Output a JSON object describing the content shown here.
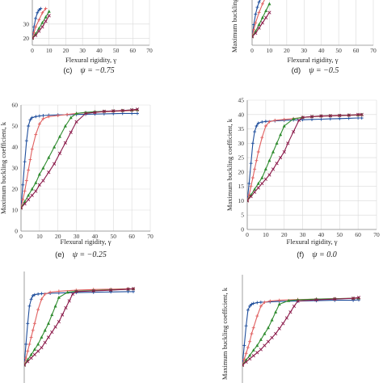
{
  "chart_data": [
    {
      "panel": "c-partial",
      "type": "line",
      "xlabel": "Flexural rigidity, γ",
      "ylabel": "",
      "caption_letter": "(c)",
      "caption_text": "ψ = −0.75",
      "xlim": [
        0,
        70
      ],
      "ylim": [
        15,
        70
      ],
      "xticks": [
        0,
        10,
        20,
        30,
        40,
        50,
        60,
        70
      ],
      "yticks": [
        20,
        30
      ],
      "grid": true,
      "series": [
        {
          "color": "#1f4e9c",
          "marker": "plus",
          "x": [
            0,
            1,
            2,
            3,
            4,
            5
          ],
          "y": [
            20,
            28,
            34,
            38,
            40,
            41
          ]
        },
        {
          "color": "#e06060",
          "marker": "plus",
          "x": [
            0,
            1,
            2,
            4,
            6,
            8
          ],
          "y": [
            20,
            24,
            28,
            33,
            38,
            41
          ]
        },
        {
          "color": "#2e8b2e",
          "marker": "triangle",
          "x": [
            0,
            2,
            4,
            6,
            8,
            10
          ],
          "y": [
            20,
            23,
            27,
            31,
            35,
            39
          ]
        },
        {
          "color": "#8b1a4a",
          "marker": "x",
          "x": [
            0,
            2,
            4,
            6,
            8,
            10
          ],
          "y": [
            20,
            22,
            25,
            28,
            32,
            36
          ]
        }
      ]
    },
    {
      "panel": "d-partial",
      "type": "line",
      "xlabel": "Flexural rigidity, γ",
      "ylabel": "Maximum buckling coefficient, k",
      "caption_letter": "(d)",
      "caption_text": "ψ = −0.5",
      "xlim": [
        0,
        70
      ],
      "ylim": [
        10,
        55
      ],
      "xticks": [
        0,
        10,
        20,
        30,
        40,
        50,
        60,
        70
      ],
      "yticks": [],
      "grid": true,
      "series": [
        {
          "color": "#1f4e9c",
          "marker": "plus",
          "x": [
            0,
            1,
            2,
            3,
            4,
            5,
            6
          ],
          "y": [
            15,
            22,
            28,
            32,
            35,
            37,
            38
          ]
        },
        {
          "color": "#e06060",
          "marker": "plus",
          "x": [
            0,
            1,
            2,
            4,
            6,
            8
          ],
          "y": [
            15,
            19,
            23,
            29,
            34,
            38
          ]
        },
        {
          "color": "#2e8b2e",
          "marker": "triangle",
          "x": [
            0,
            2,
            4,
            6,
            8,
            10
          ],
          "y": [
            15,
            18,
            22,
            26,
            30,
            34
          ]
        },
        {
          "color": "#8b1a4a",
          "marker": "x",
          "x": [
            0,
            2,
            4,
            6,
            8,
            10
          ],
          "y": [
            15,
            17,
            20,
            23,
            26,
            29
          ]
        }
      ]
    },
    {
      "panel": "e",
      "type": "line",
      "xlabel": "Flexural rigidity, γ",
      "ylabel": "Maximum buckling coefficient, k",
      "caption_letter": "(e)",
      "caption_text": "ψ = −0.25",
      "xlim": [
        0,
        70
      ],
      "ylim": [
        0,
        60
      ],
      "xticks": [
        0,
        10,
        20,
        30,
        40,
        50,
        60,
        70
      ],
      "yticks": [
        0,
        10,
        20,
        30,
        40,
        50,
        60
      ],
      "grid": true,
      "series": [
        {
          "color": "#1f4e9c",
          "marker": "plus",
          "x": [
            0,
            1,
            2,
            3,
            4,
            5,
            6,
            8,
            10,
            12,
            15,
            20,
            25,
            30,
            35,
            40,
            45,
            50,
            55,
            60,
            63
          ],
          "y": [
            11,
            22,
            33,
            43,
            50,
            53,
            54,
            54.5,
            54.8,
            55,
            55.2,
            55.3,
            55.4,
            55.5,
            55.6,
            55.7,
            55.8,
            55.9,
            56,
            56,
            56
          ]
        },
        {
          "color": "#e06060",
          "marker": "plus",
          "x": [
            0,
            1,
            2,
            3,
            4,
            5,
            6,
            8,
            10,
            12,
            15,
            20,
            25,
            30,
            35,
            40,
            45,
            50,
            55,
            60,
            63
          ],
          "y": [
            11,
            15,
            19,
            24,
            29,
            34,
            39,
            46,
            51,
            53.5,
            54.5,
            55,
            55.5,
            56,
            56.3,
            56.5,
            56.8,
            57,
            57.2,
            57.4,
            57.5
          ]
        },
        {
          "color": "#2e8b2e",
          "marker": "triangle",
          "x": [
            0,
            2,
            4,
            6,
            8,
            10,
            12,
            15,
            18,
            21,
            24,
            27,
            30,
            35,
            40,
            45,
            50,
            55,
            60,
            63
          ],
          "y": [
            11,
            14,
            17,
            20,
            23,
            27,
            30,
            35,
            40,
            45,
            50,
            54,
            56,
            56.5,
            56.8,
            57,
            57.2,
            57.4,
            57.6,
            57.8
          ]
        },
        {
          "color": "#8b1a4a",
          "marker": "x",
          "x": [
            0,
            2,
            4,
            6,
            8,
            10,
            12,
            15,
            18,
            21,
            24,
            27,
            30,
            35,
            40,
            45,
            50,
            55,
            60,
            63
          ],
          "y": [
            11,
            13,
            15,
            17,
            19,
            22,
            24,
            28,
            32,
            37,
            42,
            47,
            52,
            56,
            56.5,
            57,
            57.2,
            57.4,
            57.7,
            58
          ]
        }
      ]
    },
    {
      "panel": "f",
      "type": "line",
      "xlabel": "Flexural rigidity, γ",
      "ylabel": "Maximum buckling coefficient, k",
      "caption_letter": "(f)",
      "caption_text": "ψ = 0.0",
      "xlim": [
        0,
        70
      ],
      "ylim": [
        0,
        45
      ],
      "xticks": [
        0,
        10,
        20,
        30,
        40,
        50,
        60,
        70
      ],
      "yticks": [
        0,
        5,
        10,
        15,
        20,
        25,
        30,
        35,
        40,
        45
      ],
      "grid": true,
      "series": [
        {
          "color": "#1f4e9c",
          "marker": "plus",
          "x": [
            0,
            1,
            2,
            3,
            4,
            5,
            6,
            8,
            10,
            15,
            20,
            25,
            30,
            35,
            40,
            45,
            50,
            55,
            60,
            62
          ],
          "y": [
            10,
            16,
            23,
            30,
            34,
            36,
            37,
            37.4,
            37.6,
            37.8,
            38,
            38.1,
            38.2,
            38.3,
            38.4,
            38.5,
            38.6,
            38.7,
            38.8,
            38.8
          ]
        },
        {
          "color": "#e06060",
          "marker": "plus",
          "x": [
            0,
            1,
            2,
            3,
            4,
            5,
            6,
            8,
            10,
            12,
            15,
            20,
            25,
            30,
            35,
            40,
            45,
            50,
            55,
            60,
            62
          ],
          "y": [
            10,
            12,
            15,
            18,
            21,
            24,
            27,
            32,
            36,
            37.5,
            38,
            38.3,
            38.6,
            39,
            39.2,
            39.4,
            39.5,
            39.6,
            39.7,
            39.8,
            39.8
          ]
        },
        {
          "color": "#2e8b2e",
          "marker": "triangle",
          "x": [
            0,
            2,
            4,
            6,
            8,
            10,
            12,
            14,
            16,
            18,
            20,
            25,
            30,
            35,
            40,
            45,
            50,
            55,
            60,
            62
          ],
          "y": [
            10,
            12,
            14,
            16,
            18,
            21,
            24,
            27,
            30,
            33,
            36,
            38.5,
            39,
            39.3,
            39.5,
            39.6,
            39.7,
            39.8,
            39.9,
            40
          ]
        },
        {
          "color": "#8b1a4a",
          "marker": "x",
          "x": [
            0,
            2,
            4,
            6,
            8,
            10,
            12,
            14,
            16,
            18,
            20,
            22,
            25,
            28,
            30,
            35,
            40,
            45,
            50,
            55,
            60,
            62
          ],
          "y": [
            10,
            11.5,
            13,
            14.5,
            16,
            17.5,
            19,
            21,
            23,
            25,
            27,
            30,
            34,
            38,
            39,
            39.3,
            39.5,
            39.6,
            39.7,
            39.8,
            40,
            40
          ]
        }
      ]
    },
    {
      "panel": "g-partial",
      "type": "line",
      "xlabel": "",
      "ylabel": "",
      "caption_letter": "",
      "caption_text": "",
      "xlim": [
        0,
        70
      ],
      "ylim": [
        0,
        35
      ],
      "xticks": [],
      "yticks": [],
      "grid": true,
      "series": [
        {
          "color": "#1f4e9c",
          "marker": "plus",
          "x": [
            0,
            1,
            2,
            3,
            4,
            5,
            6,
            8,
            10,
            15,
            20,
            30,
            40,
            50,
            60,
            63
          ],
          "y": [
            8,
            14,
            20,
            25,
            27,
            28,
            28.3,
            28.5,
            28.6,
            28.7,
            28.8,
            28.9,
            29,
            29.1,
            29.2,
            29.2
          ]
        },
        {
          "color": "#e06060",
          "marker": "plus",
          "x": [
            0,
            1,
            2,
            3,
            4,
            5,
            6,
            8,
            10,
            12,
            15,
            20,
            30,
            40,
            50,
            60,
            63
          ],
          "y": [
            8,
            10,
            12,
            14,
            16,
            18,
            20,
            24,
            27,
            28.5,
            29,
            29.3,
            29.6,
            29.8,
            29.9,
            30,
            30
          ]
        },
        {
          "color": "#2e8b2e",
          "marker": "triangle",
          "x": [
            0,
            2,
            4,
            6,
            8,
            10,
            12,
            14,
            16,
            18,
            20,
            25,
            30,
            40,
            50,
            60,
            63
          ],
          "y": [
            8,
            9.5,
            11,
            12.5,
            14,
            16,
            18,
            20,
            22.5,
            25,
            27.5,
            29,
            29.3,
            29.5,
            29.7,
            29.9,
            30
          ]
        },
        {
          "color": "#8b1a4a",
          "marker": "x",
          "x": [
            0,
            2,
            4,
            6,
            8,
            10,
            12,
            14,
            16,
            18,
            20,
            22,
            24,
            26,
            28,
            30,
            40,
            50,
            60,
            63
          ],
          "y": [
            8,
            9,
            10,
            11,
            12,
            13,
            14.5,
            16,
            17.5,
            19,
            20.5,
            22.5,
            24.5,
            26.5,
            28.5,
            29.2,
            29.4,
            29.6,
            29.9,
            30
          ]
        }
      ]
    },
    {
      "panel": "h-partial",
      "type": "line",
      "xlabel": "",
      "ylabel": "Maximum buckling coefficient, k",
      "caption_letter": "",
      "caption_text": "",
      "xlim": [
        0,
        70
      ],
      "ylim": [
        0,
        30
      ],
      "xticks": [],
      "yticks": [],
      "grid": true,
      "series": [
        {
          "color": "#1f4e9c",
          "marker": "plus",
          "x": [
            0,
            1,
            2,
            3,
            4,
            5,
            6,
            8,
            10,
            15,
            20,
            30,
            40,
            50,
            60,
            63
          ],
          "y": [
            7,
            12,
            17,
            21,
            22,
            22.5,
            22.7,
            22.9,
            23,
            23.1,
            23.2,
            23.3,
            23.4,
            23.5,
            23.5,
            23.6
          ]
        },
        {
          "color": "#e06060",
          "marker": "plus",
          "x": [
            0,
            1,
            2,
            3,
            4,
            5,
            6,
            8,
            10,
            12,
            15,
            20,
            30,
            40,
            50,
            60,
            63
          ],
          "y": [
            7,
            8.5,
            10,
            11.5,
            13,
            15,
            16.5,
            19.5,
            22,
            23,
            23.3,
            23.5,
            23.7,
            23.8,
            23.9,
            24,
            24
          ]
        },
        {
          "color": "#2e8b2e",
          "marker": "triangle",
          "x": [
            0,
            2,
            4,
            6,
            8,
            10,
            12,
            14,
            16,
            18,
            20,
            25,
            30,
            40,
            50,
            60,
            63
          ],
          "y": [
            7,
            8.3,
            9.5,
            10.8,
            12,
            13.5,
            15,
            16.5,
            18.5,
            20.5,
            22.5,
            23.4,
            23.6,
            23.8,
            23.9,
            24,
            24.1
          ]
        },
        {
          "color": "#8b1a4a",
          "marker": "x",
          "x": [
            0,
            2,
            4,
            6,
            8,
            10,
            12,
            14,
            16,
            18,
            20,
            22,
            24,
            26,
            28,
            30,
            40,
            50,
            60,
            63
          ],
          "y": [
            7,
            7.8,
            8.6,
            9.4,
            10.2,
            11,
            12,
            13,
            14,
            15,
            16.3,
            17.6,
            19,
            20.5,
            22,
            23.3,
            23.6,
            23.8,
            24,
            24.2
          ]
        }
      ]
    }
  ]
}
